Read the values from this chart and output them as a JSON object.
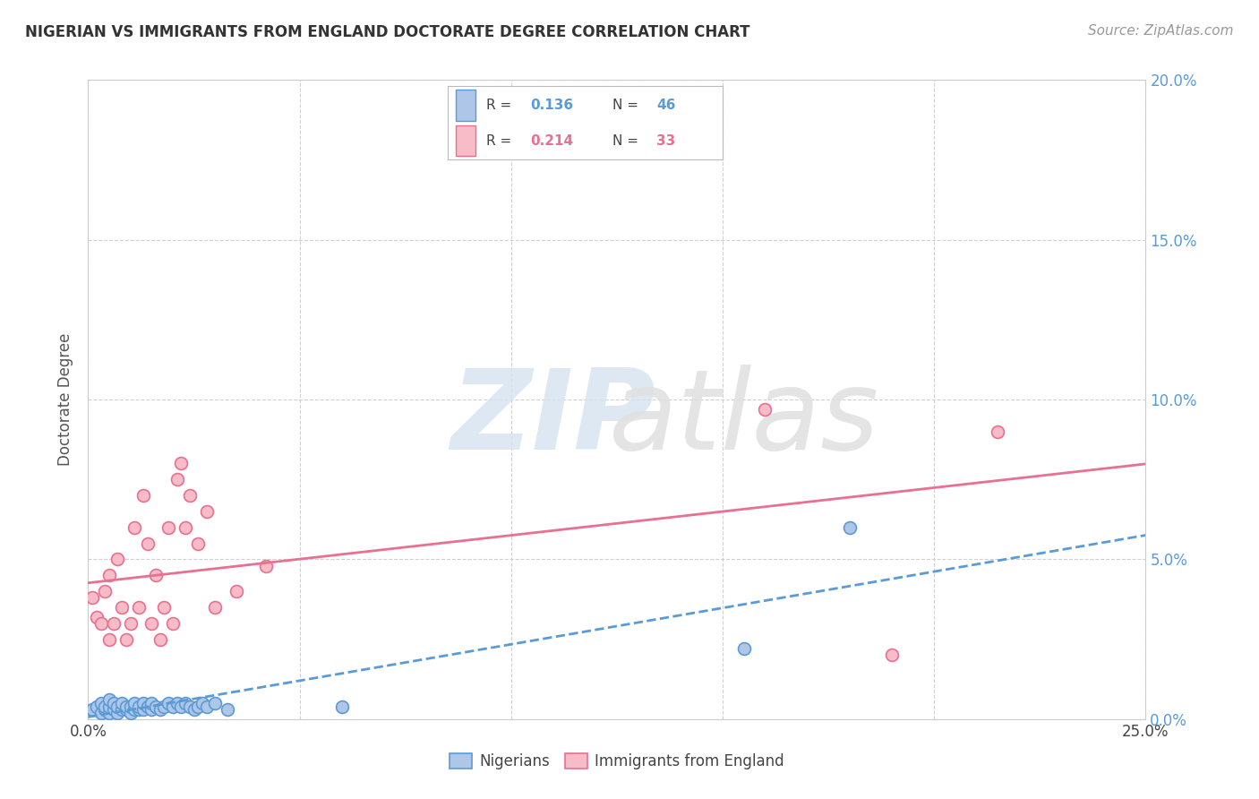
{
  "title": "NIGERIAN VS IMMIGRANTS FROM ENGLAND DOCTORATE DEGREE CORRELATION CHART",
  "source": "Source: ZipAtlas.com",
  "ylabel": "Doctorate Degree",
  "xlim": [
    0.0,
    0.25
  ],
  "ylim": [
    0.0,
    0.2
  ],
  "yticks": [
    0.0,
    0.05,
    0.1,
    0.15,
    0.2
  ],
  "xticks": [
    0.0,
    0.05,
    0.1,
    0.15,
    0.2,
    0.25
  ],
  "legend_r1": "0.136",
  "legend_n1": "46",
  "legend_r2": "0.214",
  "legend_n2": "33",
  "blue_face": "#aec6e8",
  "blue_edge": "#5b9bd5",
  "pink_face": "#f7bcc8",
  "pink_edge": "#e87090",
  "blue_line": "#5b9bd5",
  "pink_line": "#e87090",
  "grid_color": "#d0d0d0",
  "background_color": "#ffffff",
  "nigerians_x": [
    0.001,
    0.002,
    0.003,
    0.003,
    0.004,
    0.004,
    0.005,
    0.005,
    0.005,
    0.006,
    0.006,
    0.007,
    0.007,
    0.008,
    0.008,
    0.009,
    0.009,
    0.01,
    0.01,
    0.011,
    0.011,
    0.012,
    0.012,
    0.013,
    0.013,
    0.014,
    0.015,
    0.015,
    0.016,
    0.017,
    0.018,
    0.019,
    0.02,
    0.021,
    0.022,
    0.023,
    0.024,
    0.025,
    0.026,
    0.027,
    0.028,
    0.03,
    0.033,
    0.06,
    0.155,
    0.18
  ],
  "nigerians_y": [
    0.003,
    0.004,
    0.002,
    0.005,
    0.003,
    0.004,
    0.002,
    0.004,
    0.006,
    0.003,
    0.005,
    0.002,
    0.004,
    0.003,
    0.005,
    0.003,
    0.004,
    0.002,
    0.004,
    0.003,
    0.005,
    0.003,
    0.004,
    0.003,
    0.005,
    0.004,
    0.003,
    0.005,
    0.004,
    0.003,
    0.004,
    0.005,
    0.004,
    0.005,
    0.004,
    0.005,
    0.004,
    0.003,
    0.004,
    0.005,
    0.004,
    0.005,
    0.003,
    0.004,
    0.022,
    0.06
  ],
  "england_x": [
    0.001,
    0.002,
    0.003,
    0.004,
    0.005,
    0.005,
    0.006,
    0.007,
    0.008,
    0.009,
    0.01,
    0.011,
    0.012,
    0.013,
    0.014,
    0.015,
    0.016,
    0.017,
    0.018,
    0.019,
    0.02,
    0.021,
    0.022,
    0.023,
    0.024,
    0.026,
    0.028,
    0.03,
    0.035,
    0.042,
    0.16,
    0.19,
    0.215
  ],
  "england_y": [
    0.038,
    0.032,
    0.03,
    0.04,
    0.025,
    0.045,
    0.03,
    0.05,
    0.035,
    0.025,
    0.03,
    0.06,
    0.035,
    0.07,
    0.055,
    0.03,
    0.045,
    0.025,
    0.035,
    0.06,
    0.03,
    0.075,
    0.08,
    0.06,
    0.07,
    0.055,
    0.065,
    0.035,
    0.04,
    0.048,
    0.097,
    0.02,
    0.09
  ]
}
